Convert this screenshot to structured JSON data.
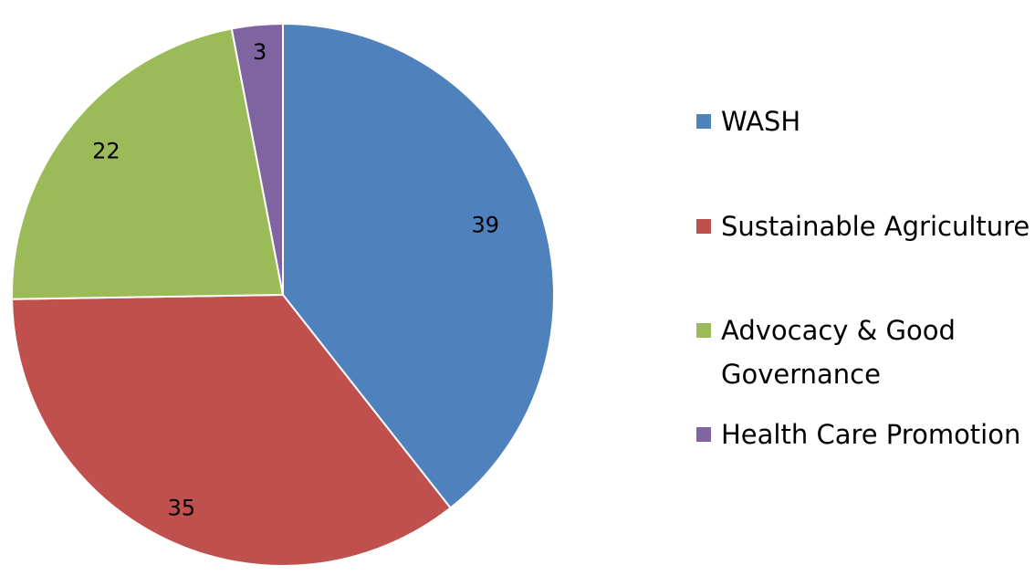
{
  "chart_data": {
    "type": "pie",
    "title": "",
    "categories": [
      "WASH",
      "Sustainable Agriculture",
      "Advocacy & Good Governance",
      "Health Care Promotion"
    ],
    "values": [
      39,
      35,
      22,
      3
    ],
    "colors": [
      "#4F81BD",
      "#C0504D",
      "#9BBB59",
      "#8064A2"
    ],
    "start_angle": "12 o'clock",
    "direction": "clockwise",
    "data_labels": true,
    "legend": {
      "position": "right",
      "entries": [
        {
          "lines": [
            "WASH"
          ]
        },
        {
          "lines": [
            "Sustainable Agriculture"
          ]
        },
        {
          "lines": [
            "Advocacy & Good",
            "Governance"
          ]
        },
        {
          "lines": [
            "Health Care Promotion"
          ]
        }
      ]
    }
  }
}
